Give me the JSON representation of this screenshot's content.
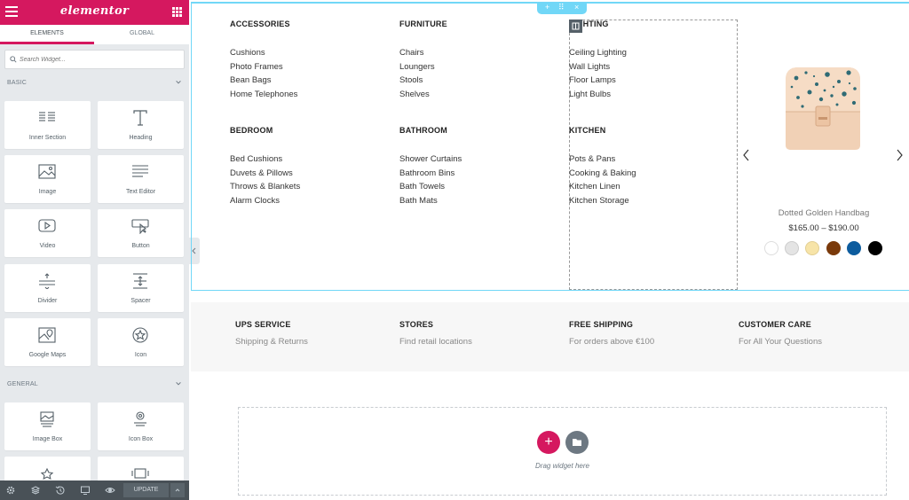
{
  "sidebar": {
    "logo": "elementor",
    "tabs": [
      {
        "label": "ELEMENTS"
      },
      {
        "label": "GLOBAL"
      }
    ],
    "search": {
      "placeholder": "Search Widget..."
    },
    "categories": [
      {
        "label": "BASIC"
      },
      {
        "label": "GENERAL"
      }
    ],
    "widgets": [
      {
        "label": "Inner Section",
        "icon": "inner-section-icon"
      },
      {
        "label": "Heading",
        "icon": "heading-icon"
      },
      {
        "label": "Image",
        "icon": "image-icon"
      },
      {
        "label": "Text Editor",
        "icon": "text-editor-icon"
      },
      {
        "label": "Video",
        "icon": "video-icon"
      },
      {
        "label": "Button",
        "icon": "button-icon"
      },
      {
        "label": "Divider",
        "icon": "divider-icon"
      },
      {
        "label": "Spacer",
        "icon": "spacer-icon"
      },
      {
        "label": "Google Maps",
        "icon": "google-maps-icon"
      },
      {
        "label": "Icon",
        "icon": "star-icon"
      },
      {
        "label": "Image Box",
        "icon": "image-box-icon"
      },
      {
        "label": "Icon Box",
        "icon": "icon-box-icon"
      }
    ],
    "footer": {
      "update_label": "UPDATE"
    }
  },
  "menu": {
    "columns": [
      {
        "title": "ACCESSORIES",
        "items": [
          "Cushions",
          "Photo Frames",
          "Bean Bags",
          "Home Telephones"
        ]
      },
      {
        "title": "FURNITURE",
        "items": [
          "Chairs",
          "Loungers",
          "Stools",
          "Shelves"
        ]
      },
      {
        "title": "LIGHTING",
        "items": [
          "Ceiling Lighting",
          "Wall Lights",
          "Floor Lamps",
          "Light Bulbs"
        ]
      },
      {
        "title": "BEDROOM",
        "items": [
          "Bed Cushions",
          "Duvets & Pillows",
          "Throws & Blankets",
          "Alarm Clocks"
        ]
      },
      {
        "title": "BATHROOM",
        "items": [
          "Shower Curtains",
          "Bathroom Bins",
          "Bath Towels",
          "Bath Mats"
        ]
      },
      {
        "title": "KITCHEN",
        "items": [
          "Pots & Pans",
          "Cooking & Baking",
          "Kitchen Linen",
          "Kitchen Storage"
        ]
      }
    ]
  },
  "product": {
    "title": "Dotted Golden Handbag",
    "price": "$165.00 – $190.00",
    "swatches": [
      "#ffffff",
      "#e4e4e4",
      "#f7e4a8",
      "#7a3a0b",
      "#0d5c9e",
      "#000000"
    ]
  },
  "services": [
    {
      "title": "UPS SERVICE",
      "text": "Shipping & Returns"
    },
    {
      "title": "STORES",
      "text": "Find retail locations"
    },
    {
      "title": "FREE SHIPPING",
      "text": "For orders above €100"
    },
    {
      "title": "CUSTOMER CARE",
      "text": "For All Your Questions"
    }
  ],
  "dropzone": {
    "text": "Drag widget here",
    "add_label": "+"
  },
  "colors": {
    "accent": "#d5185f",
    "section_outline": "#71d7f7",
    "sidebar_bg": "#e6e9ec",
    "footer_bg": "#495157"
  }
}
